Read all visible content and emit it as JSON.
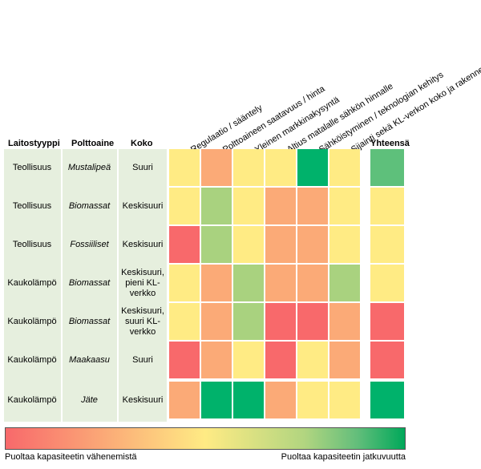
{
  "headers": {
    "type_label": "Laitostyyppi",
    "fuel_label": "Polttoaine",
    "size_label": "Koko",
    "total_label": "Yhteensä"
  },
  "factors": [
    "Regulaatio / sääntely",
    "Polttoaineen saatavuus / hinta",
    "Yleinen markkinakysyntä",
    "Altius matalalle sähkön hinnalle",
    "Sähköistyminen / teknologian kehitys",
    "Sijainti sekä KL-verkon koko ja rakenne"
  ],
  "rows": [
    {
      "type": "Teollisuus",
      "fuel": "Mustalipeä",
      "size": "Suuri"
    },
    {
      "type": "Teollisuus",
      "fuel": "Biomassat",
      "size": "Keskisuuri"
    },
    {
      "type": "Teollisuus",
      "fuel": "Fossiiliset",
      "size": "Keskisuuri"
    },
    {
      "type": "Kaukolämpö",
      "fuel": "Biomassat",
      "size": "Keskisuuri, pieni KL-verkko"
    },
    {
      "type": "Kaukolämpö",
      "fuel": "Biomassat",
      "size": "Keskisuuri, suuri KL-verkko"
    },
    {
      "type": "Kaukolämpö",
      "fuel": "Maakaasu",
      "size": "Suuri"
    },
    {
      "type": "Kaukolämpö",
      "fuel": "Jäte",
      "size": "Keskisuuri"
    }
  ],
  "legend": {
    "left": "Puoltaa kapasiteetin vähenemistä",
    "right": "Puoltaa kapasiteetin jatkuvuutta"
  },
  "colors": {
    "red": "#f8696b",
    "orange": "#fbaa77",
    "yellow": "#ffeb84",
    "lightgreen": "#a9d27f",
    "green": "#00b26b",
    "midgreen": "#5ec07b",
    "label_bg": "#e6efde"
  },
  "chart_data": {
    "type": "heatmap",
    "scale": "1 = puoltaa kapasiteetin vähenemistä, 5 = puoltaa kapasiteetin jatkuvuutta",
    "columns": [
      "Regulaatio / sääntely",
      "Polttoaineen saatavuus / hinta",
      "Yleinen markkinakysyntä",
      "Altius matalalle sähkön hinnalle",
      "Sähköistyminen / teknologian kehitys",
      "Sijainti sekä KL-verkon koko ja rakenne",
      "Yhteensä"
    ],
    "values": [
      [
        3,
        2,
        3,
        3,
        5,
        3,
        4.5
      ],
      [
        3,
        4,
        3,
        2,
        2,
        3,
        3
      ],
      [
        1,
        4,
        3,
        2,
        2,
        3,
        3
      ],
      [
        3,
        2,
        4,
        2,
        2,
        4,
        3
      ],
      [
        3,
        2,
        4,
        1,
        1,
        2,
        1.5
      ],
      [
        1,
        2,
        3,
        1,
        3,
        2,
        1.5
      ],
      [
        2,
        5,
        5,
        2,
        3,
        3,
        5
      ]
    ]
  }
}
